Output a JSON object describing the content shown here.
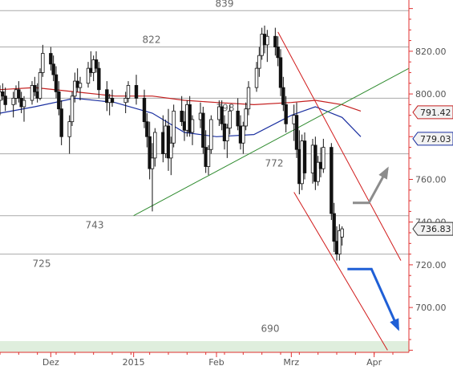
{
  "chart_data": {
    "type": "candlestick",
    "y_axis": {
      "ticks": [
        700,
        720,
        740,
        760,
        780,
        800,
        820
      ],
      "tick_labels": [
        "700.00",
        "720.00",
        "740.00",
        "760.00",
        "780.00",
        "800.00",
        "820.00"
      ],
      "range": [
        679,
        844
      ],
      "side": "right"
    },
    "x_axis": {
      "tick_labels": [
        "Dez",
        "2015",
        "Feb",
        "Mrz",
        "Apr"
      ],
      "ticks": [
        "2014-12-01",
        "2015-01-01",
        "2015-02-01",
        "2015-03-01",
        "2015-04-01"
      ],
      "range": [
        "2014-11-12",
        "2015-04-14"
      ]
    },
    "horizontal_levels": [
      {
        "value": 839,
        "label": "839"
      },
      {
        "value": 822,
        "label": "822"
      },
      {
        "value": 798,
        "label": "798"
      },
      {
        "value": 772,
        "label": "772"
      },
      {
        "value": 743,
        "label": "743"
      },
      {
        "value": 725,
        "label": "725"
      },
      {
        "value": 690,
        "label": "690"
      }
    ],
    "last_value_tags": [
      {
        "label": "791.42",
        "value": 791.42,
        "color": "#c41f1f"
      },
      {
        "label": "779.03",
        "value": 779.03,
        "color": "#1a2fa0"
      },
      {
        "label": "736.83",
        "value": 736.83,
        "color": "#333333"
      }
    ],
    "moving_averages": [
      {
        "color": "#c41f1f",
        "points": [
          [
            "2014-11-12",
            802
          ],
          [
            "2014-11-25",
            803
          ],
          [
            "2014-12-10",
            801
          ],
          [
            "2014-12-25",
            799
          ],
          [
            "2015-01-08",
            799
          ],
          [
            "2015-01-20",
            797
          ],
          [
            "2015-02-01",
            796
          ],
          [
            "2015-02-15",
            795
          ],
          [
            "2015-03-01",
            796
          ],
          [
            "2015-03-10",
            797
          ],
          [
            "2015-03-20",
            795
          ],
          [
            "2015-03-27",
            792
          ]
        ]
      },
      {
        "color": "#1a2fa0",
        "points": [
          [
            "2014-11-12",
            791
          ],
          [
            "2014-11-25",
            794
          ],
          [
            "2014-12-10",
            798
          ],
          [
            "2014-12-25",
            796
          ],
          [
            "2015-01-08",
            791
          ],
          [
            "2015-01-20",
            782
          ],
          [
            "2015-02-01",
            780
          ],
          [
            "2015-02-15",
            781
          ],
          [
            "2015-03-01",
            790
          ],
          [
            "2015-03-10",
            794
          ],
          [
            "2015-03-20",
            789
          ],
          [
            "2015-03-27",
            780
          ]
        ]
      }
    ],
    "trendlines": [
      {
        "color": "#2e8b2e",
        "from": [
          "2015-01-01",
          743
        ],
        "to": [
          "2015-04-14",
          812
        ]
      },
      {
        "color": "#d11b1b",
        "from": [
          "2015-02-24",
          829
        ],
        "to": [
          "2015-04-11",
          722
        ]
      },
      {
        "color": "#d11b1b",
        "from": [
          "2015-03-02",
          754
        ],
        "to": [
          "2015-04-06",
          680
        ]
      }
    ],
    "arrows": [
      {
        "color": "#8c8c8c",
        "points": [
          [
            "2015-03-24",
            749
          ],
          [
            "2015-03-30",
            749
          ],
          [
            "2015-04-06",
            765
          ]
        ]
      },
      {
        "color": "#1f5fd6",
        "points": [
          [
            "2015-03-22",
            718
          ],
          [
            "2015-03-31",
            718
          ],
          [
            "2015-04-10",
            690
          ]
        ]
      }
    ],
    "candles": [
      [
        "2014-11-12",
        797,
        804,
        790,
        801
      ],
      [
        "2014-11-13",
        801,
        805,
        797,
        799
      ],
      [
        "2014-11-14",
        799,
        803,
        792,
        795
      ],
      [
        "2014-11-17",
        795,
        801,
        789,
        798
      ],
      [
        "2014-11-18",
        798,
        804,
        795,
        802
      ],
      [
        "2014-11-19",
        802,
        806,
        796,
        798
      ],
      [
        "2014-11-20",
        798,
        801,
        791,
        794
      ],
      [
        "2014-11-21",
        794,
        799,
        787,
        797
      ],
      [
        "2014-11-24",
        797,
        806,
        795,
        804
      ],
      [
        "2014-11-25",
        804,
        808,
        799,
        801
      ],
      [
        "2014-11-26",
        801,
        805,
        796,
        798
      ],
      [
        "2014-11-27",
        798,
        812,
        797,
        810
      ],
      [
        "2014-11-28",
        810,
        823,
        808,
        819
      ],
      [
        "2014-12-01",
        819,
        822,
        811,
        814
      ],
      [
        "2014-12-02",
        814,
        818,
        806,
        809
      ],
      [
        "2014-12-03",
        809,
        813,
        798,
        801
      ],
      [
        "2014-12-04",
        801,
        806,
        790,
        793
      ],
      [
        "2014-12-05",
        793,
        797,
        776,
        780
      ],
      [
        "2014-12-08",
        780,
        790,
        772,
        787
      ],
      [
        "2014-12-09",
        787,
        801,
        785,
        799
      ],
      [
        "2014-12-10",
        799,
        810,
        796,
        806
      ],
      [
        "2014-12-11",
        806,
        812,
        801,
        803
      ],
      [
        "2014-12-12",
        803,
        808,
        797,
        805
      ],
      [
        "2014-12-15",
        805,
        815,
        803,
        812
      ],
      [
        "2014-12-16",
        812,
        820,
        808,
        810
      ],
      [
        "2014-12-17",
        810,
        818,
        806,
        816
      ],
      [
        "2014-12-18",
        816,
        820,
        810,
        812
      ],
      [
        "2014-12-19",
        812,
        815,
        798,
        802
      ],
      [
        "2014-12-22",
        802,
        806,
        792,
        796
      ],
      [
        "2014-12-23",
        796,
        800,
        790,
        798
      ],
      [
        "2014-12-24",
        798,
        802,
        794,
        796
      ],
      [
        "2014-12-29",
        796,
        801,
        791,
        798
      ],
      [
        "2014-12-30",
        798,
        806,
        796,
        804
      ],
      [
        "2015-01-02",
        804,
        809,
        795,
        798
      ],
      [
        "2015-01-05",
        798,
        802,
        784,
        787
      ],
      [
        "2015-01-06",
        787,
        791,
        775,
        780
      ],
      [
        "2015-01-07",
        780,
        787,
        760,
        765
      ],
      [
        "2015-01-08",
        765,
        777,
        745,
        770
      ],
      [
        "2015-01-09",
        770,
        784,
        766,
        782
      ],
      [
        "2015-01-12",
        782,
        790,
        768,
        772
      ],
      [
        "2015-01-13",
        772,
        788,
        770,
        785
      ],
      [
        "2015-01-14",
        785,
        793,
        764,
        770
      ],
      [
        "2015-01-15",
        770,
        780,
        762,
        777
      ],
      [
        "2015-01-16",
        777,
        795,
        775,
        792
      ],
      [
        "2015-01-19",
        792,
        799,
        785,
        787
      ],
      [
        "2015-01-20",
        787,
        792,
        778,
        783
      ],
      [
        "2015-01-21",
        783,
        797,
        780,
        795
      ],
      [
        "2015-01-22",
        795,
        799,
        780,
        782
      ],
      [
        "2015-01-23",
        782,
        790,
        776,
        788
      ],
      [
        "2015-01-26",
        788,
        796,
        784,
        791
      ],
      [
        "2015-01-27",
        791,
        794,
        772,
        775
      ],
      [
        "2015-01-28",
        775,
        783,
        763,
        766
      ],
      [
        "2015-01-29",
        766,
        776,
        762,
        774
      ],
      [
        "2015-01-30",
        774,
        790,
        772,
        788
      ],
      [
        "2015-02-02",
        788,
        797,
        785,
        794
      ],
      [
        "2015-02-03",
        794,
        797,
        783,
        786
      ],
      [
        "2015-02-04",
        786,
        790,
        774,
        778
      ],
      [
        "2015-02-05",
        778,
        786,
        770,
        784
      ],
      [
        "2015-02-06",
        784,
        795,
        781,
        792
      ],
      [
        "2015-02-09",
        792,
        798,
        783,
        785
      ],
      [
        "2015-02-10",
        785,
        790,
        774,
        777
      ],
      [
        "2015-02-11",
        777,
        787,
        772,
        785
      ],
      [
        "2015-02-12",
        785,
        796,
        783,
        793
      ],
      [
        "2015-02-13",
        793,
        806,
        790,
        803
      ],
      [
        "2015-02-16",
        803,
        815,
        801,
        812
      ],
      [
        "2015-02-17",
        812,
        822,
        808,
        818
      ],
      [
        "2015-02-18",
        818,
        831,
        816,
        828
      ],
      [
        "2015-02-19",
        828,
        832,
        819,
        823
      ],
      [
        "2015-02-20",
        823,
        830,
        815,
        827
      ],
      [
        "2015-02-23",
        827,
        831,
        818,
        822
      ],
      [
        "2015-02-24",
        822,
        827,
        813,
        817
      ],
      [
        "2015-02-25",
        817,
        821,
        799,
        803
      ],
      [
        "2015-02-26",
        803,
        808,
        792,
        795
      ],
      [
        "2015-02-27",
        795,
        799,
        782,
        786
      ],
      [
        "2015-03-02",
        786,
        795,
        778,
        790
      ],
      [
        "2015-03-03",
        790,
        796,
        770,
        774
      ],
      [
        "2015-03-04",
        774,
        783,
        753,
        758
      ],
      [
        "2015-03-05",
        758,
        781,
        755,
        778
      ],
      [
        "2015-03-06",
        778,
        782,
        760,
        763
      ],
      [
        "2015-03-09",
        763,
        779,
        758,
        776
      ],
      [
        "2015-03-10",
        776,
        780,
        755,
        759
      ],
      [
        "2015-03-11",
        759,
        771,
        757,
        768
      ],
      [
        "2015-03-12",
        768,
        775,
        761,
        765
      ],
      [
        "2015-03-13",
        765,
        779,
        763,
        775
      ],
      [
        "2015-03-16",
        775,
        777,
        741,
        744
      ],
      [
        "2015-03-17",
        744,
        749,
        726,
        731
      ],
      [
        "2015-03-18",
        731,
        738,
        722,
        725
      ],
      [
        "2015-03-19",
        725,
        739,
        722,
        736
      ],
      [
        "2015-03-20",
        733,
        738,
        729,
        736.83
      ]
    ]
  },
  "controls": {
    "icons": [
      "zoom-out-icon",
      "zoom-in-icon",
      "scroll-left-icon",
      "scroll-right-icon"
    ]
  }
}
